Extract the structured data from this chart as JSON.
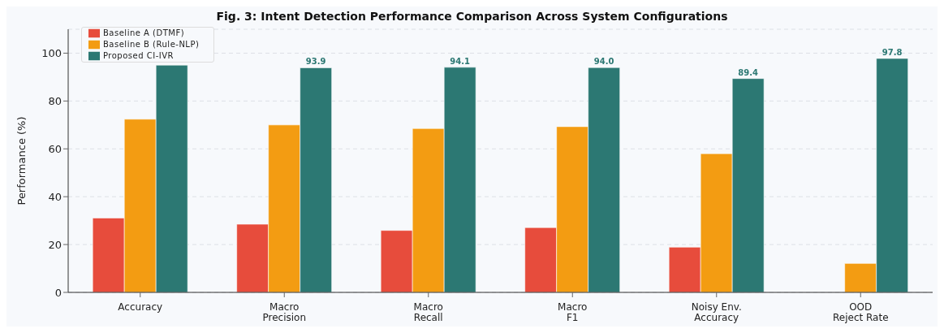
{
  "chart_data": {
    "type": "bar",
    "title": "Fig. 3: Intent Detection Performance Comparison Across System Configurations",
    "categories": [
      "Accuracy",
      "Macro\nPrecision",
      "Macro\nRecall",
      "Macro\nF1",
      "Noisy Env.\nAccuracy",
      "OOD\nReject Rate"
    ],
    "series": [
      {
        "name": "Baseline A (DTMF)",
        "color": "#e74c3c",
        "values": [
          31.1,
          28.5,
          25.9,
          27.1,
          18.9,
          null
        ]
      },
      {
        "name": "Baseline B (Rule-NLP)",
        "color": "#f39c12",
        "values": [
          72.4,
          70.0,
          68.5,
          69.3,
          58.0,
          12.1
        ]
      },
      {
        "name": "Proposed CI-IVR",
        "color": "#2c7873",
        "values": [
          95.0,
          93.9,
          94.1,
          94.0,
          89.4,
          97.8
        ],
        "value_labels": [
          null,
          "93.9",
          "94.1",
          "94.0",
          "89.4",
          "97.8"
        ]
      }
    ],
    "ylabel": "Performance (%)",
    "ylim": [
      0,
      110
    ],
    "yticks": [
      0,
      20,
      40,
      60,
      80,
      100
    ],
    "grid": "y",
    "legend": "top left"
  }
}
